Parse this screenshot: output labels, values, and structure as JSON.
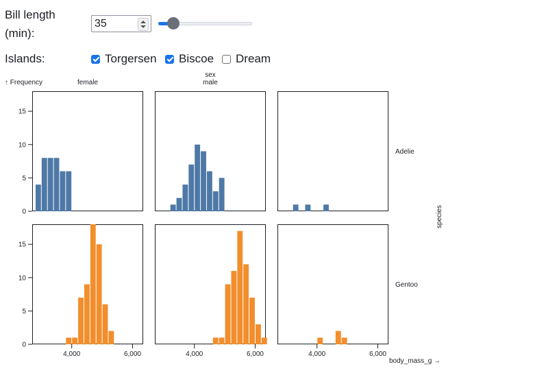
{
  "controls": {
    "bill_length": {
      "label": "Bill length (min):",
      "value": "35",
      "min": 32,
      "max": 60
    },
    "islands": {
      "label": "Islands:",
      "options": [
        {
          "label": "Torgersen",
          "checked": true
        },
        {
          "label": "Biscoe",
          "checked": true
        },
        {
          "label": "Dream",
          "checked": false
        }
      ]
    }
  },
  "chart_data": {
    "type": "bar",
    "y_axis_label": "↑ Frequency",
    "x_axis_label": "body_mass_g →",
    "fx_label": "sex",
    "fy_label": "species",
    "columns": [
      "female",
      "male",
      ""
    ],
    "rows": [
      "Adelie",
      "Gentoo"
    ],
    "xlim": [
      2700,
      6350
    ],
    "ylim": [
      0,
      18
    ],
    "x_ticks": [
      4000,
      6000
    ],
    "x_tick_labels": [
      "4,000",
      "6,000"
    ],
    "y_ticks": [
      0,
      5,
      10,
      15
    ],
    "bin_width": 200,
    "colors": {
      "Adelie": "#4e79a7",
      "Gentoo": "#f28e2c"
    },
    "panels": [
      {
        "row": "Adelie",
        "col": "female",
        "bins": [
          [
            2800,
            3000,
            4
          ],
          [
            3000,
            3200,
            8
          ],
          [
            3200,
            3400,
            8
          ],
          [
            3400,
            3600,
            8
          ],
          [
            3600,
            3800,
            6
          ],
          [
            3800,
            4000,
            6
          ]
        ]
      },
      {
        "row": "Adelie",
        "col": "male",
        "bins": [
          [
            3200,
            3400,
            1
          ],
          [
            3400,
            3600,
            2
          ],
          [
            3600,
            3800,
            4
          ],
          [
            3800,
            4000,
            7
          ],
          [
            4000,
            4200,
            10
          ],
          [
            4200,
            4400,
            9
          ],
          [
            4400,
            4600,
            6
          ],
          [
            4600,
            4800,
            3
          ],
          [
            4800,
            5000,
            5
          ]
        ]
      },
      {
        "row": "Adelie",
        "col": "",
        "bins": [
          [
            3200,
            3400,
            1
          ],
          [
            3600,
            3800,
            1
          ],
          [
            4200,
            4400,
            1
          ]
        ]
      },
      {
        "row": "Gentoo",
        "col": "female",
        "bins": [
          [
            3800,
            4000,
            1
          ],
          [
            4000,
            4200,
            1
          ],
          [
            4200,
            4400,
            7
          ],
          [
            4400,
            4600,
            9
          ],
          [
            4600,
            4800,
            18
          ],
          [
            4800,
            5000,
            15
          ],
          [
            5000,
            5200,
            6
          ],
          [
            5200,
            5400,
            2
          ]
        ]
      },
      {
        "row": "Gentoo",
        "col": "male",
        "bins": [
          [
            4600,
            4800,
            1
          ],
          [
            4800,
            5000,
            1
          ],
          [
            5000,
            5200,
            9
          ],
          [
            5200,
            5400,
            11
          ],
          [
            5400,
            5600,
            17
          ],
          [
            5600,
            5800,
            12
          ],
          [
            5800,
            6000,
            7
          ],
          [
            6000,
            6200,
            3
          ],
          [
            6200,
            6400,
            1
          ]
        ]
      },
      {
        "row": "Gentoo",
        "col": "",
        "bins": [
          [
            4000,
            4200,
            1
          ],
          [
            4600,
            4800,
            2
          ],
          [
            4800,
            5000,
            1
          ]
        ]
      }
    ]
  }
}
